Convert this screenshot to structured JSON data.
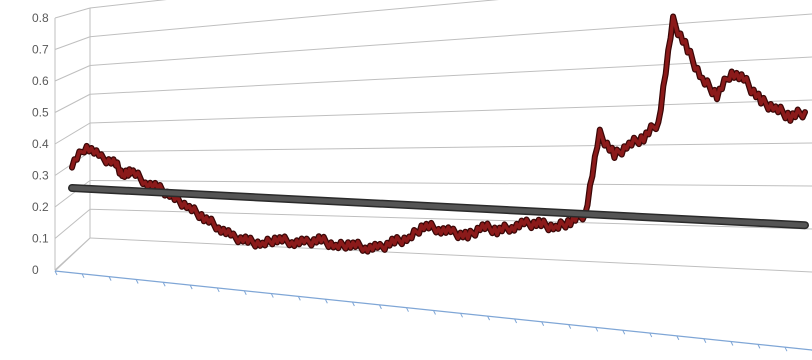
{
  "chart_data": {
    "type": "line",
    "title": "",
    "xlabel": "",
    "ylabel": "",
    "ylim": [
      0,
      0.8
    ],
    "y_ticks": [
      "0",
      "0.1",
      "0.2",
      "0.3",
      "0.4",
      "0.5",
      "0.6",
      "0.7",
      "0.8"
    ],
    "grid": true,
    "perspective": "3d",
    "series": [
      {
        "color": "#8b1a1a",
        "x": [
          0,
          2,
          4,
          6,
          7,
          8,
          10,
          12,
          14,
          16,
          18,
          20,
          22,
          24,
          26,
          28,
          30,
          32,
          34,
          36,
          38,
          40,
          42,
          44,
          46,
          48,
          50,
          52,
          54,
          56,
          58,
          60,
          62,
          64,
          66,
          68,
          70,
          72,
          74,
          76,
          78,
          80,
          82,
          84,
          86,
          88,
          90,
          92,
          94,
          96,
          98,
          100
        ],
        "values": [
          0.28,
          0.34,
          0.3,
          0.28,
          0.24,
          0.26,
          0.22,
          0.2,
          0.17,
          0.14,
          0.11,
          0.08,
          0.05,
          0.04,
          0.03,
          0.05,
          0.04,
          0.04,
          0.05,
          0.03,
          0.04,
          0.03,
          0.03,
          0.05,
          0.06,
          0.1,
          0.09,
          0.08,
          0.07,
          0.1,
          0.09,
          0.1,
          0.11,
          0.11,
          0.1,
          0.12,
          0.14,
          0.36,
          0.3,
          0.33,
          0.35,
          0.39,
          0.66,
          0.58,
          0.5,
          0.46,
          0.52,
          0.49,
          0.44,
          0.42,
          0.4,
          0.41
        ]
      },
      {
        "color": "#555555",
        "x": [
          0,
          100
        ],
        "values": [
          0.2,
          0.12
        ]
      }
    ]
  }
}
